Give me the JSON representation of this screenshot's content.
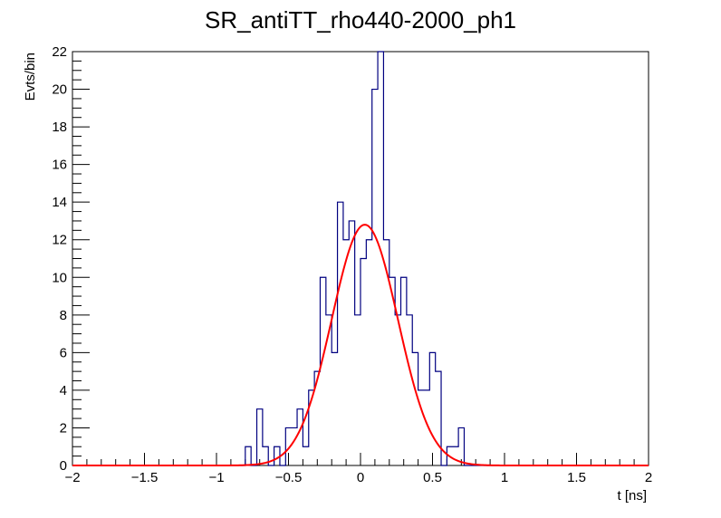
{
  "chart_data": {
    "type": "histogram",
    "title": "SR_antiTT_rho440-2000_ph1",
    "xlabel": "t [ns]",
    "ylabel": "Evts/bin",
    "xlim": [
      -2,
      2
    ],
    "ylim": [
      0,
      22
    ],
    "x_ticks": [
      -2,
      -1.5,
      -1,
      -0.5,
      0,
      0.5,
      1,
      1.5,
      2
    ],
    "y_ticks": [
      0,
      2,
      4,
      6,
      8,
      10,
      12,
      14,
      16,
      18,
      20,
      22
    ],
    "x_tick_labels": [
      "−2",
      "−1.5",
      "−1",
      "−0.5",
      "0",
      "0.5",
      "1",
      "1.5",
      "2"
    ],
    "y_tick_labels": [
      "0",
      "2",
      "4",
      "6",
      "8",
      "10",
      "12",
      "14",
      "16",
      "18",
      "20",
      "22"
    ],
    "grid": false,
    "histogram": {
      "color": "#000080",
      "bin_width": 0.04,
      "bin_starts": [
        -0.8,
        -0.76,
        -0.72,
        -0.68,
        -0.64,
        -0.6,
        -0.56,
        -0.52,
        -0.48,
        -0.44,
        -0.4,
        -0.36,
        -0.32,
        -0.28,
        -0.24,
        -0.2,
        -0.16,
        -0.12,
        -0.08,
        -0.04,
        0.0,
        0.04,
        0.08,
        0.12,
        0.16,
        0.2,
        0.24,
        0.28,
        0.32,
        0.36,
        0.4,
        0.44,
        0.48,
        0.52,
        0.56,
        0.6,
        0.64,
        0.68,
        0.72,
        0.76
      ],
      "counts": [
        1,
        0,
        3,
        1,
        0,
        1,
        0,
        2,
        2,
        3,
        1,
        4,
        5,
        10,
        8,
        6,
        14,
        12,
        13,
        8,
        11,
        12,
        20,
        22,
        12,
        10,
        8,
        10,
        8,
        6,
        4,
        4,
        6,
        5,
        0,
        1,
        1,
        2,
        0,
        0
      ]
    },
    "fit": {
      "type": "gaussian",
      "color": "#ff0000",
      "amplitude": 12.8,
      "mean": 0.03,
      "sigma": 0.23
    }
  }
}
